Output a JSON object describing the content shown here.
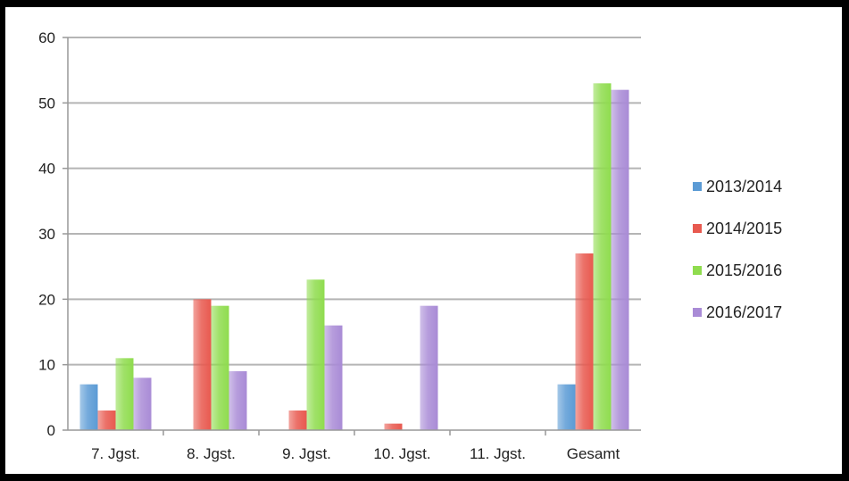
{
  "chart_data": {
    "type": "bar",
    "categories": [
      "7. Jgst.",
      "8. Jgst.",
      "9. Jgst.",
      "10. Jgst.",
      "11. Jgst.",
      "Gesamt"
    ],
    "series": [
      {
        "name": "2013/2014",
        "color": "#5b9bd5",
        "values": [
          7,
          0,
          0,
          0,
          0,
          7
        ]
      },
      {
        "name": "2014/2015",
        "color": "#e8594f",
        "values": [
          3,
          20,
          3,
          1,
          0,
          27
        ]
      },
      {
        "name": "2015/2016",
        "color": "#8fdc4e",
        "values": [
          11,
          19,
          23,
          0,
          0,
          53
        ]
      },
      {
        "name": "2016/2017",
        "color": "#a98bd6",
        "values": [
          8,
          9,
          16,
          19,
          0,
          52
        ]
      }
    ],
    "title": "",
    "xlabel": "",
    "ylabel": "",
    "ylim": [
      0,
      60
    ],
    "yticks": [
      0,
      10,
      20,
      30,
      40,
      50,
      60
    ],
    "grid": true,
    "legend": "right"
  }
}
